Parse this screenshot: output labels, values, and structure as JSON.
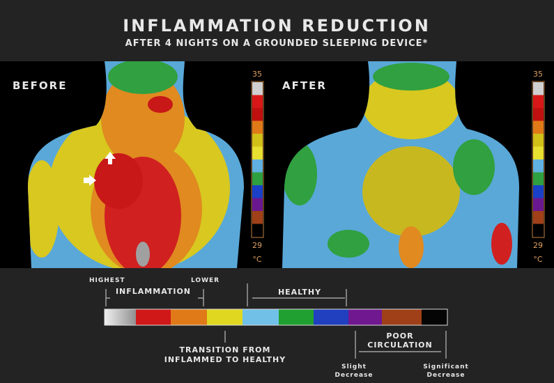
{
  "header": {
    "title": "INFLAMMATION REDUCTION",
    "subtitle": "AFTER 4 NIGHTS ON A GROUNDED SLEEPING DEVICE*"
  },
  "panels": [
    {
      "label": "BEFORE",
      "scale_max": 35,
      "scale_min": 29,
      "unit": "°C"
    },
    {
      "label": "AFTER",
      "scale_max": 35,
      "scale_min": 29,
      "unit": "°C"
    }
  ],
  "legend": {
    "highest": "HIGHEST",
    "lower": "LOWER",
    "inflammation": "INFLAMMATION",
    "healthy": "HEALTHY",
    "transition": [
      "TRANSITION FROM",
      "INFLAMMED TO HEALTHY"
    ],
    "poor_circulation": [
      "POOR",
      "CIRCULATION"
    ],
    "slight": [
      "Slight",
      "Decrease"
    ],
    "significant": [
      "Significant",
      "Decrease"
    ]
  }
}
